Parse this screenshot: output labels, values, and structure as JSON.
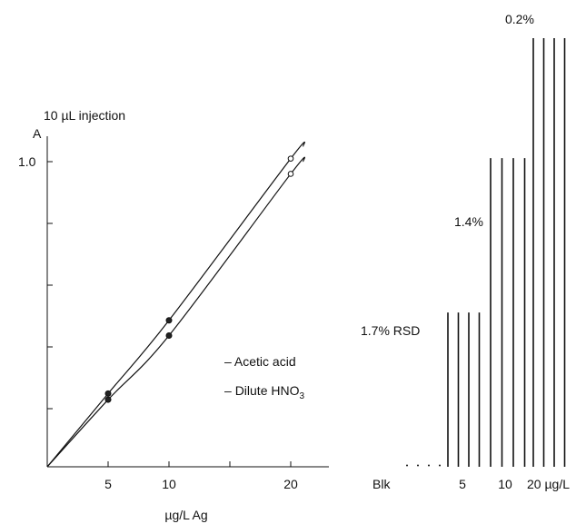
{
  "chart_data": [
    {
      "type": "line",
      "title": "10 µL injection",
      "ylabel": "A",
      "xlabel": "µg/L Ag",
      "x_ticks": [
        "5",
        "10",
        "20"
      ],
      "y_ticks": [
        "1.0"
      ],
      "xlim": [
        0,
        24
      ],
      "ylim": [
        0,
        1.2
      ],
      "grid": false,
      "legend": "right",
      "series": [
        {
          "name": "Acetic acid",
          "x": [
            0,
            5,
            10,
            20
          ],
          "y": [
            0,
            0.24,
            0.48,
            1.01
          ]
        },
        {
          "name": "Dilute HNO",
          "name_sub": "3",
          "x": [
            0,
            5,
            10,
            20
          ],
          "y": [
            0,
            0.22,
            0.43,
            0.96
          ]
        }
      ]
    },
    {
      "type": "bar",
      "categories": [
        "Blk",
        "5",
        "10",
        "20 µg/L"
      ],
      "x_tick_labels": [
        "Blk",
        "5",
        "10",
        "20 µg/L"
      ],
      "replicates_per_group": 4,
      "relative_heights": [
        0.005,
        0.36,
        0.72,
        1.0
      ],
      "annotations": [
        "1.7% RSD",
        "1.4%",
        "0.2%"
      ]
    }
  ]
}
